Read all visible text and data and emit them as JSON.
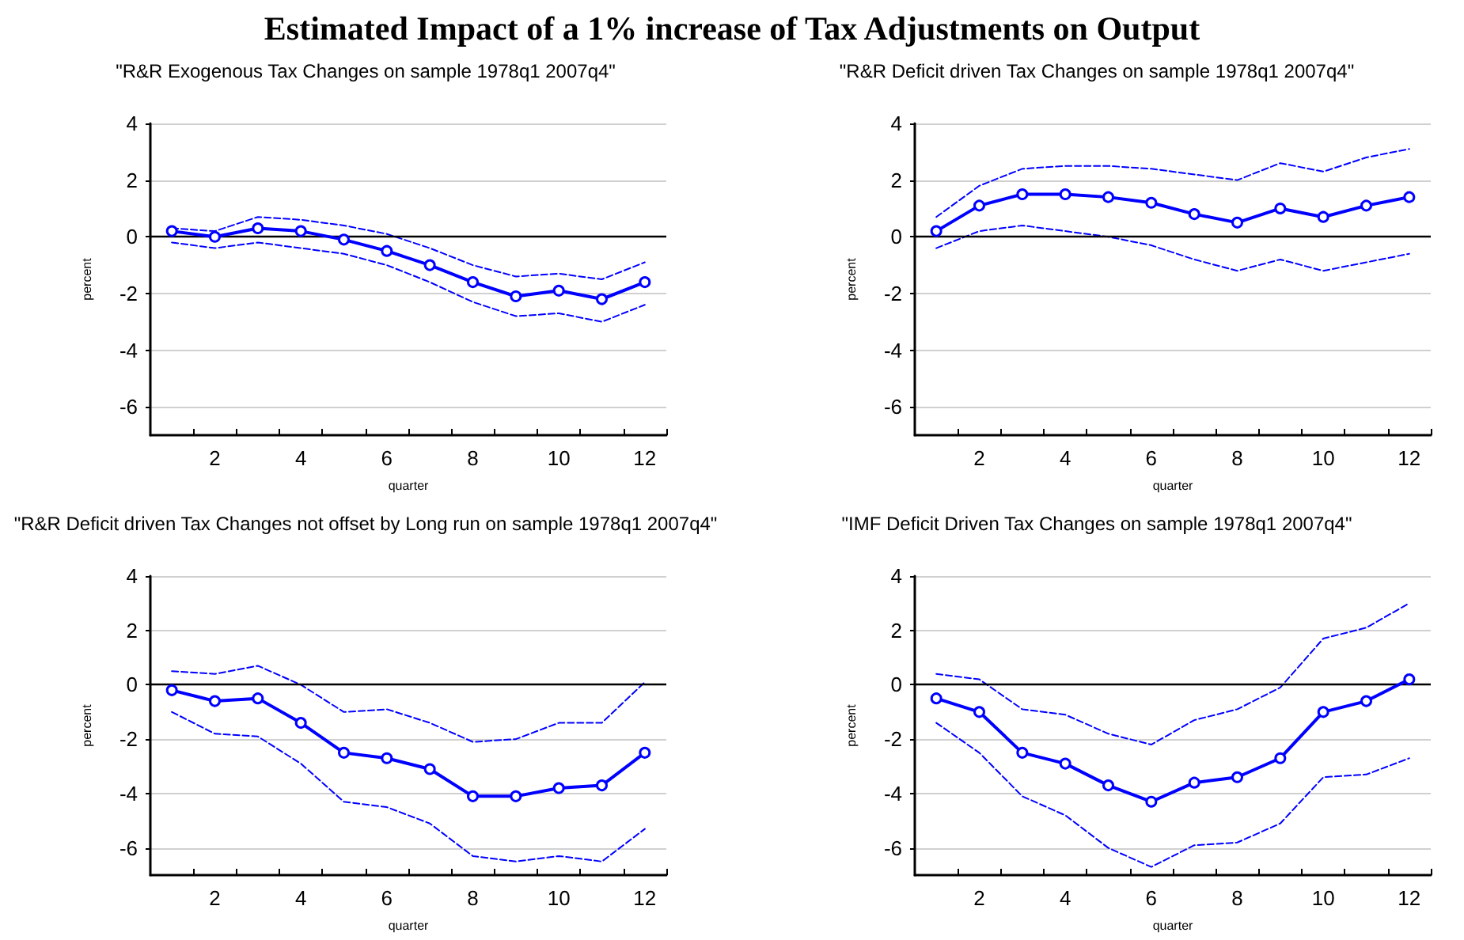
{
  "chart_data": [
    {
      "type": "line",
      "title": "Estimated Impact of a 1% increase of Tax Adjustments on Output",
      "subtitle": "\"R&R Exogenous Tax Changes on sample 1978q1 2007q4\"",
      "xlabel": "quarter",
      "ylabel": "percent",
      "x": [
        1,
        2,
        3,
        4,
        5,
        6,
        7,
        8,
        9,
        10,
        11,
        12
      ],
      "xlim": [
        0.5,
        12.5
      ],
      "xticks": [
        {
          "value": 1.5,
          "label": null
        },
        2,
        {
          "value": 2.5,
          "label": null
        },
        {
          "value": 3.5,
          "label": null
        },
        4,
        {
          "value": 4.5,
          "label": null
        },
        {
          "value": 5.5,
          "label": null
        },
        6,
        {
          "value": 6.5,
          "label": null
        },
        {
          "value": 7.5,
          "label": null
        },
        8,
        {
          "value": 8.5,
          "label": null
        },
        {
          "value": 9.5,
          "label": null
        },
        10,
        {
          "value": 10.5,
          "label": null
        },
        {
          "value": 11.5,
          "label": null
        },
        12,
        {
          "value": 12.5,
          "label": null
        }
      ],
      "ylim": [
        -7,
        4
      ],
      "yticks": [
        -6,
        -4,
        -2,
        0,
        2,
        4
      ],
      "grid": "y",
      "ref_lines": [
        {
          "axis": "y",
          "value": 0,
          "color": "#000000"
        }
      ],
      "series": [
        {
          "color": "#0000ff",
          "marker": "circle",
          "line_style": "solid",
          "values": [
            0.2,
            0.0,
            0.3,
            0.2,
            -0.1,
            -0.5,
            -1.0,
            -1.6,
            -2.1,
            -1.9,
            -2.2,
            -1.6
          ]
        },
        {
          "color": "#0000ff",
          "marker": "none",
          "line_style": "dashed",
          "values": [
            0.3,
            0.2,
            0.7,
            0.6,
            0.4,
            0.1,
            -0.4,
            -1.0,
            -1.4,
            -1.3,
            -1.5,
            -0.9
          ]
        },
        {
          "color": "#0000ff",
          "marker": "none",
          "line_style": "dashed",
          "values": [
            -0.2,
            -0.4,
            -0.2,
            -0.4,
            -0.6,
            -1.0,
            -1.6,
            -2.3,
            -2.8,
            -2.7,
            -3.0,
            -2.4
          ]
        }
      ]
    },
    {
      "type": "line",
      "subtitle": "\"R&R Deficit driven Tax Changes on sample 1978q1 2007q4\"",
      "xlabel": "quarter",
      "ylabel": "percent",
      "x": [
        1,
        2,
        3,
        4,
        5,
        6,
        7,
        8,
        9,
        10,
        11,
        12
      ],
      "xlim": [
        0.5,
        12.5
      ],
      "xticks": [
        {
          "value": 1.5,
          "label": null
        },
        2,
        {
          "value": 2.5,
          "label": null
        },
        {
          "value": 3.5,
          "label": null
        },
        4,
        {
          "value": 4.5,
          "label": null
        },
        {
          "value": 5.5,
          "label": null
        },
        6,
        {
          "value": 6.5,
          "label": null
        },
        {
          "value": 7.5,
          "label": null
        },
        8,
        {
          "value": 8.5,
          "label": null
        },
        {
          "value": 9.5,
          "label": null
        },
        10,
        {
          "value": 10.5,
          "label": null
        },
        {
          "value": 11.5,
          "label": null
        },
        12,
        {
          "value": 12.5,
          "label": null
        }
      ],
      "ylim": [
        -7,
        4
      ],
      "yticks": [
        -6,
        -4,
        -2,
        0,
        2,
        4
      ],
      "grid": "y",
      "ref_lines": [
        {
          "axis": "y",
          "value": 0,
          "color": "#000000"
        }
      ],
      "series": [
        {
          "color": "#0000ff",
          "marker": "circle",
          "line_style": "solid",
          "values": [
            0.2,
            1.1,
            1.5,
            1.5,
            1.4,
            1.2,
            0.8,
            0.5,
            1.0,
            0.7,
            1.1,
            1.4
          ]
        },
        {
          "color": "#0000ff",
          "marker": "none",
          "line_style": "dashed",
          "values": [
            0.7,
            1.8,
            2.4,
            2.5,
            2.5,
            2.4,
            2.2,
            2.0,
            2.6,
            2.3,
            2.8,
            3.1
          ]
        },
        {
          "color": "#0000ff",
          "marker": "none",
          "line_style": "dashed",
          "values": [
            -0.4,
            0.2,
            0.4,
            0.2,
            0.0,
            -0.3,
            -0.8,
            -1.2,
            -0.8,
            -1.2,
            -0.9,
            -0.6
          ]
        }
      ]
    },
    {
      "type": "line",
      "subtitle": "\"R&R Deficit driven Tax Changes not offset by Long run on sample 1978q1 2007q4\"",
      "xlabel": "quarter",
      "ylabel": "percent",
      "x": [
        1,
        2,
        3,
        4,
        5,
        6,
        7,
        8,
        9,
        10,
        11,
        12
      ],
      "xlim": [
        0.5,
        12.5
      ],
      "xticks": [
        {
          "value": 1.5,
          "label": null
        },
        2,
        {
          "value": 2.5,
          "label": null
        },
        {
          "value": 3.5,
          "label": null
        },
        4,
        {
          "value": 4.5,
          "label": null
        },
        {
          "value": 5.5,
          "label": null
        },
        6,
        {
          "value": 6.5,
          "label": null
        },
        {
          "value": 7.5,
          "label": null
        },
        8,
        {
          "value": 8.5,
          "label": null
        },
        {
          "value": 9.5,
          "label": null
        },
        10,
        {
          "value": 10.5,
          "label": null
        },
        {
          "value": 11.5,
          "label": null
        },
        12,
        {
          "value": 12.5,
          "label": null
        }
      ],
      "ylim": [
        -7,
        4
      ],
      "yticks": [
        -6,
        -4,
        -2,
        0,
        2,
        4
      ],
      "grid": "y",
      "ref_lines": [
        {
          "axis": "y",
          "value": 0,
          "color": "#000000"
        }
      ],
      "series": [
        {
          "color": "#0000ff",
          "marker": "circle",
          "line_style": "solid",
          "values": [
            -0.2,
            -0.6,
            -0.5,
            -1.4,
            -2.5,
            -2.7,
            -3.1,
            -4.1,
            -4.1,
            -3.8,
            -3.7,
            -2.5
          ]
        },
        {
          "color": "#0000ff",
          "marker": "none",
          "line_style": "dashed",
          "values": [
            0.5,
            0.4,
            0.7,
            0.0,
            -1.0,
            -0.9,
            -1.4,
            -2.1,
            -2.0,
            -1.4,
            -1.4,
            0.1
          ]
        },
        {
          "color": "#0000ff",
          "marker": "none",
          "line_style": "dashed",
          "values": [
            -1.0,
            -1.8,
            -1.9,
            -2.9,
            -4.3,
            -4.5,
            -5.1,
            -6.3,
            -6.5,
            -6.3,
            -6.5,
            -5.3
          ]
        }
      ]
    },
    {
      "type": "line",
      "subtitle": "\"IMF Deficit Driven Tax Changes on sample 1978q1 2007q4\"",
      "xlabel": "quarter",
      "ylabel": "percent",
      "x": [
        1,
        2,
        3,
        4,
        5,
        6,
        7,
        8,
        9,
        10,
        11,
        12
      ],
      "xlim": [
        0.5,
        12.5
      ],
      "xticks": [
        {
          "value": 1.5,
          "label": null
        },
        2,
        {
          "value": 2.5,
          "label": null
        },
        {
          "value": 3.5,
          "label": null
        },
        4,
        {
          "value": 4.5,
          "label": null
        },
        {
          "value": 5.5,
          "label": null
        },
        6,
        {
          "value": 6.5,
          "label": null
        },
        {
          "value": 7.5,
          "label": null
        },
        8,
        {
          "value": 8.5,
          "label": null
        },
        {
          "value": 9.5,
          "label": null
        },
        10,
        {
          "value": 10.5,
          "label": null
        },
        {
          "value": 11.5,
          "label": null
        },
        12,
        {
          "value": 12.5,
          "label": null
        }
      ],
      "ylim": [
        -7,
        4
      ],
      "yticks": [
        -6,
        -4,
        -2,
        0,
        2,
        4
      ],
      "grid": "y",
      "ref_lines": [
        {
          "axis": "y",
          "value": 0,
          "color": "#000000"
        }
      ],
      "series": [
        {
          "color": "#0000ff",
          "marker": "circle",
          "line_style": "solid",
          "values": [
            -0.5,
            -1.0,
            -2.5,
            -2.9,
            -3.7,
            -4.3,
            -3.6,
            -3.4,
            -2.7,
            -1.0,
            -0.6,
            0.2
          ]
        },
        {
          "color": "#0000ff",
          "marker": "none",
          "line_style": "dashed",
          "values": [
            0.4,
            0.2,
            -0.9,
            -1.1,
            -1.8,
            -2.2,
            -1.3,
            -0.9,
            -0.1,
            1.7,
            2.1,
            3.0
          ]
        },
        {
          "color": "#0000ff",
          "marker": "none",
          "line_style": "dashed",
          "values": [
            -1.4,
            -2.5,
            -4.1,
            -4.8,
            -6.0,
            -6.7,
            -5.9,
            -5.8,
            -5.1,
            -3.4,
            -3.3,
            -2.7
          ]
        }
      ]
    }
  ]
}
